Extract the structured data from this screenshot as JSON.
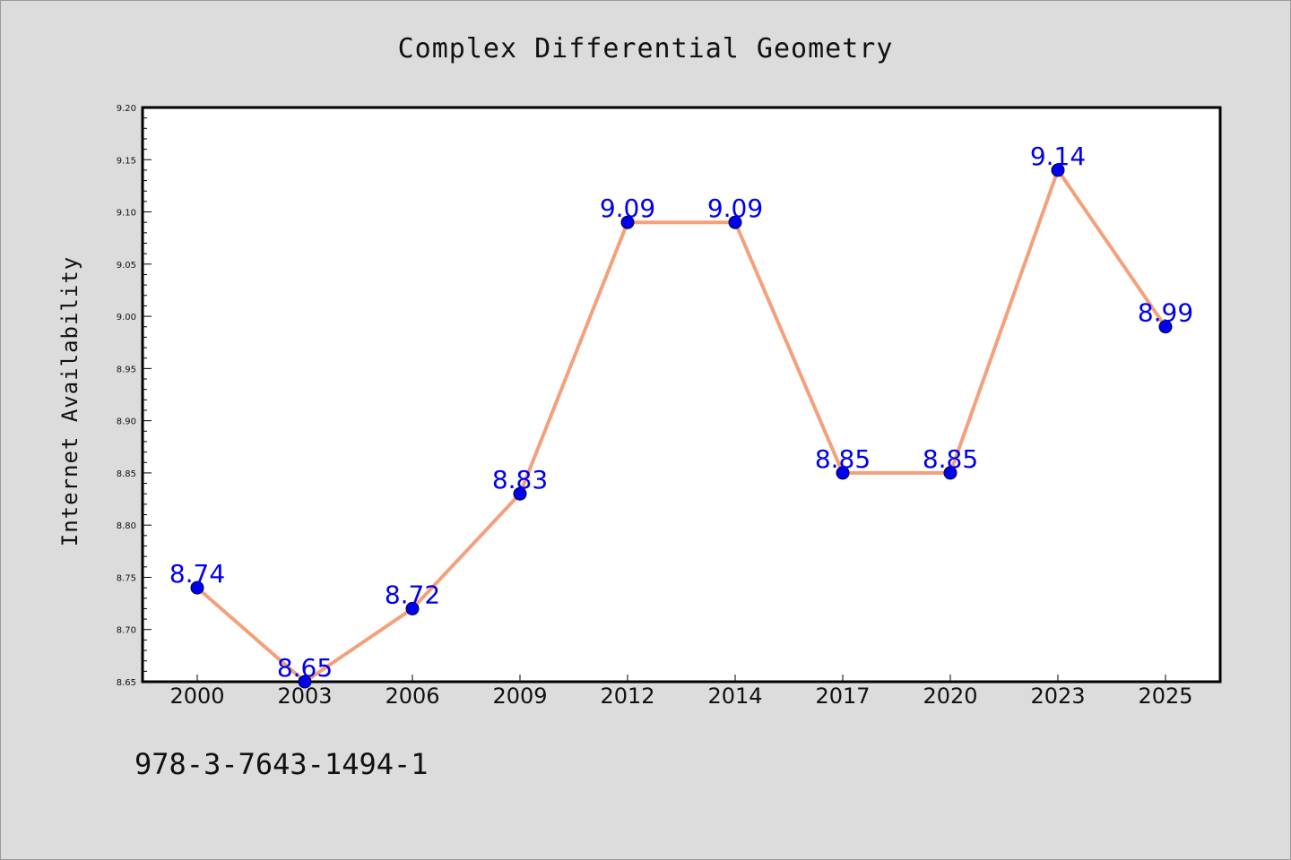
{
  "chart_data": {
    "type": "line",
    "title": "Complex Differential Geometry",
    "xlabel": "",
    "ylabel": "Internet Availability",
    "categories": [
      "2000",
      "2003",
      "2006",
      "2009",
      "2012",
      "2014",
      "2017",
      "2020",
      "2023",
      "2025"
    ],
    "series": [
      {
        "values": [
          8.74,
          8.65,
          8.72,
          8.83,
          9.09,
          9.09,
          8.85,
          8.85,
          9.14,
          8.99
        ]
      }
    ],
    "data_labels": [
      "8.74",
      "8.65",
      "8.72",
      "8.83",
      "9.09",
      "9.09",
      "8.85",
      "8.85",
      "9.14",
      "8.99"
    ],
    "ylim": [
      8.65,
      9.2
    ],
    "yticks": [
      "8.65",
      "8.70",
      "8.75",
      "8.80",
      "8.85",
      "8.90",
      "8.95",
      "9.00",
      "9.05",
      "9.10",
      "9.15",
      "9.20"
    ],
    "grid": false,
    "legend": "none",
    "line_color": "#f4a07a",
    "marker_color": "#0000ee",
    "label_color": "#0000ee"
  },
  "footer": {
    "isbn": "978-3-7643-1494-1"
  }
}
